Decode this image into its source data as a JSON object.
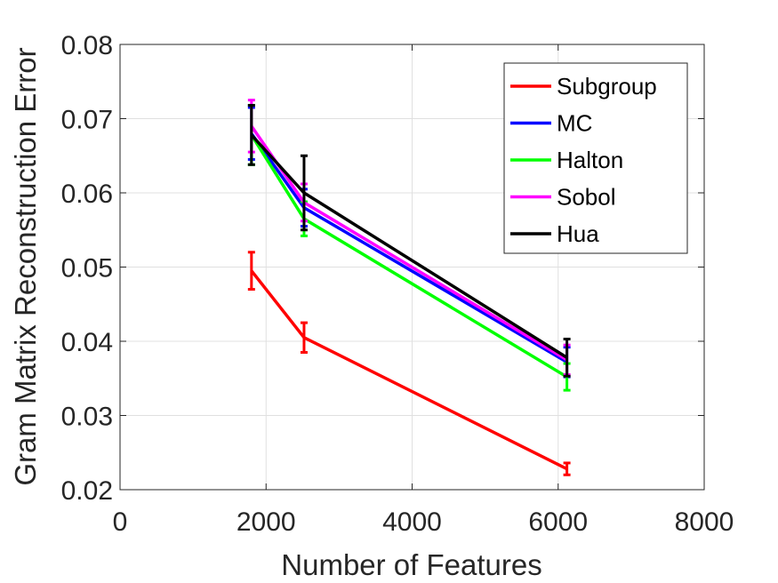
{
  "chart_data": {
    "type": "line",
    "title": "",
    "xlabel": "Number of Features",
    "ylabel": "Gram Matrix Reconstruction Error",
    "xlim": [
      0,
      8000
    ],
    "ylim": [
      0.02,
      0.08
    ],
    "xticks": [
      0,
      2000,
      4000,
      6000,
      8000
    ],
    "xtick_labels": [
      "0",
      "2000",
      "4000",
      "6000",
      "8000"
    ],
    "yticks": [
      0.02,
      0.03,
      0.04,
      0.05,
      0.06,
      0.07,
      0.08
    ],
    "ytick_labels": [
      "0.02",
      "0.03",
      "0.04",
      "0.05",
      "0.06",
      "0.07",
      "0.08"
    ],
    "grid": true,
    "legend_position": "top-right",
    "x": [
      1800,
      2520,
      6120
    ],
    "series": [
      {
        "name": "Subgroup",
        "color": "#ff0000",
        "values": [
          0.0495,
          0.0405,
          0.0228
        ],
        "errors": [
          0.0025,
          0.002,
          0.0008
        ]
      },
      {
        "name": "MC",
        "color": "#0000ff",
        "values": [
          0.068,
          0.058,
          0.0372
        ],
        "errors": [
          0.0035,
          0.0025,
          0.002
        ]
      },
      {
        "name": "Halton",
        "color": "#00ff00",
        "values": [
          0.0678,
          0.0565,
          0.0352
        ],
        "errors": [
          0.004,
          0.0023,
          0.0018
        ]
      },
      {
        "name": "Sobol",
        "color": "#ff00ff",
        "values": [
          0.069,
          0.0587,
          0.0375
        ],
        "errors": [
          0.0035,
          0.0025,
          0.002
        ]
      },
      {
        "name": "Hua",
        "color": "#000000",
        "values": [
          0.0678,
          0.06,
          0.0378
        ],
        "errors": [
          0.004,
          0.005,
          0.0025
        ]
      }
    ]
  }
}
